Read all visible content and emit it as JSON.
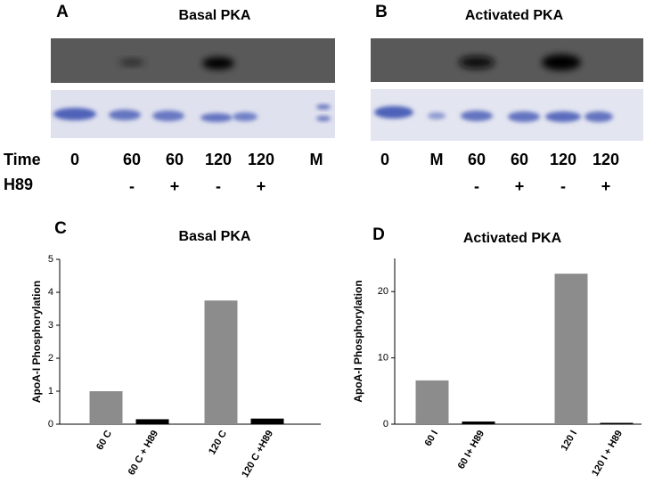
{
  "gels": [
    {
      "letter": "A",
      "title": "Basal PKA",
      "time": [
        "0",
        "60",
        "60",
        "120",
        "120",
        "M"
      ],
      "h89": [
        null,
        "-",
        "+",
        "-",
        "+",
        null
      ]
    },
    {
      "letter": "B",
      "title": "Activated PKA",
      "time": [
        "0",
        "M",
        "60",
        "60",
        "120",
        "120"
      ],
      "h89": [
        null,
        null,
        "-",
        "+",
        "-",
        "+"
      ]
    }
  ],
  "row_labels": [
    "Time",
    "H89"
  ],
  "chart_data": [
    {
      "type": "bar",
      "letter": "C",
      "title": "Basal PKA",
      "y_label": "ApoA-I Phosphorylation",
      "categories": [
        "60 C",
        "60 C + H89",
        "120 C",
        "120 C +H89"
      ],
      "values": [
        1.0,
        0.15,
        3.75,
        0.17
      ],
      "colors": [
        "#8c8c8c",
        "#000000",
        "#8c8c8c",
        "#000000"
      ],
      "ylim": [
        0,
        5
      ],
      "yticks": [
        0,
        1,
        2,
        3,
        4,
        5
      ]
    },
    {
      "type": "bar",
      "letter": "D",
      "title": "Activated PKA",
      "y_label": "ApoA-I Phosphorylation",
      "categories": [
        "60 I",
        "60 I+ H89",
        "120 I",
        "120 I + H89"
      ],
      "values": [
        6.6,
        0.4,
        22.7,
        0.2
      ],
      "colors": [
        "#8c8c8c",
        "#000000",
        "#8c8c8c",
        "#000000"
      ],
      "ylim": [
        0,
        25
      ],
      "yticks": [
        0,
        10,
        20
      ]
    }
  ]
}
